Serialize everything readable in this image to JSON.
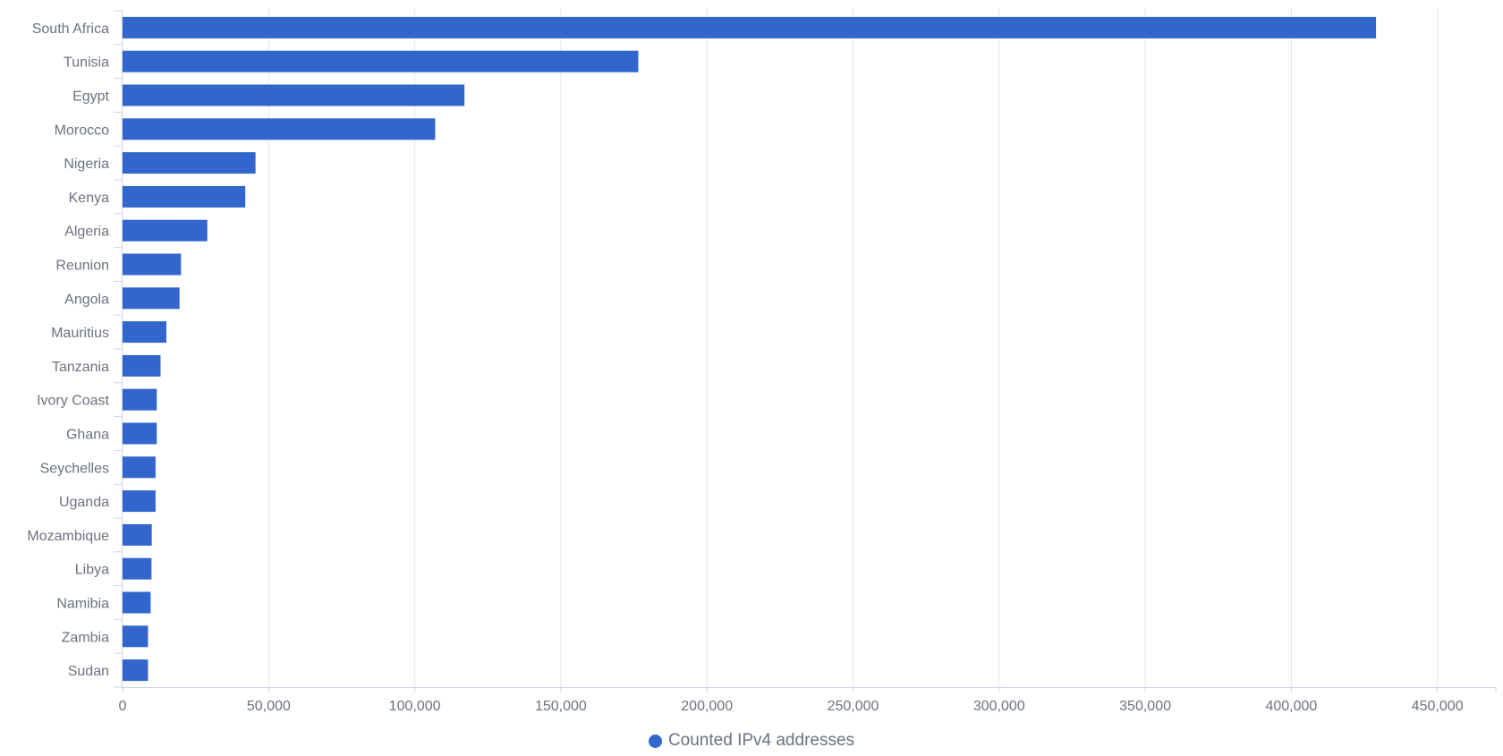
{
  "chart_data": {
    "type": "bar",
    "orientation": "horizontal",
    "categories": [
      "South Africa",
      "Tunisia",
      "Egypt",
      "Morocco",
      "Nigeria",
      "Kenya",
      "Algeria",
      "Reunion",
      "Angola",
      "Mauritius",
      "Tanzania",
      "Ivory Coast",
      "Ghana",
      "Seychelles",
      "Uganda",
      "Mozambique",
      "Libya",
      "Namibia",
      "Zambia",
      "Sudan"
    ],
    "series": [
      {
        "name": "Counted IPv4 addresses",
        "values": [
          429000,
          176500,
          117000,
          107000,
          45500,
          42000,
          29000,
          20000,
          19500,
          15000,
          13000,
          11700,
          11700,
          11300,
          11300,
          10000,
          9900,
          9600,
          8700,
          8700
        ]
      }
    ],
    "xlim": [
      0,
      470000
    ],
    "x_ticks": [
      "0",
      "50,000",
      "100,000",
      "150,000",
      "200,000",
      "250,000",
      "300,000",
      "350,000",
      "400,000",
      "450,000"
    ],
    "x_tick_values": [
      0,
      50000,
      100000,
      150000,
      200000,
      250000,
      300000,
      350000,
      400000,
      450000
    ],
    "grid": true,
    "legend_position": "bottom-center",
    "colors": {
      "bar": "#3366cc",
      "grid": "#e6e6e6",
      "axis": "#ccd6eb",
      "text": "#6b7280"
    }
  }
}
